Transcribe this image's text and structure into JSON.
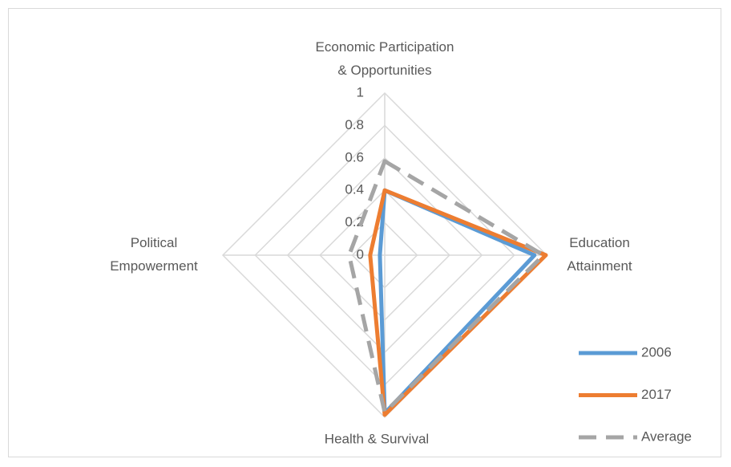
{
  "chart_data": {
    "type": "radar",
    "categories": [
      "Economic Participation\n& Opportunities",
      "Education\nAttainment",
      "Health & Survival",
      "Political\nEmpowerment"
    ],
    "series": [
      {
        "name": "2006",
        "color": "#5b9bd5",
        "values": [
          0.4,
          0.925,
          0.975,
          0.03
        ]
      },
      {
        "name": "2017",
        "color": "#ed7d31",
        "values": [
          0.4,
          0.995,
          0.985,
          0.09
        ]
      },
      {
        "name": "Average",
        "color": "#a5a5a5",
        "dashed": true,
        "values": [
          0.58,
          0.98,
          0.97,
          0.22
        ]
      }
    ],
    "rlim": [
      0,
      1
    ],
    "rticks": [
      0,
      0.2,
      0.4,
      0.6,
      0.8,
      1
    ],
    "grid": true,
    "legend": "bottom-right"
  }
}
